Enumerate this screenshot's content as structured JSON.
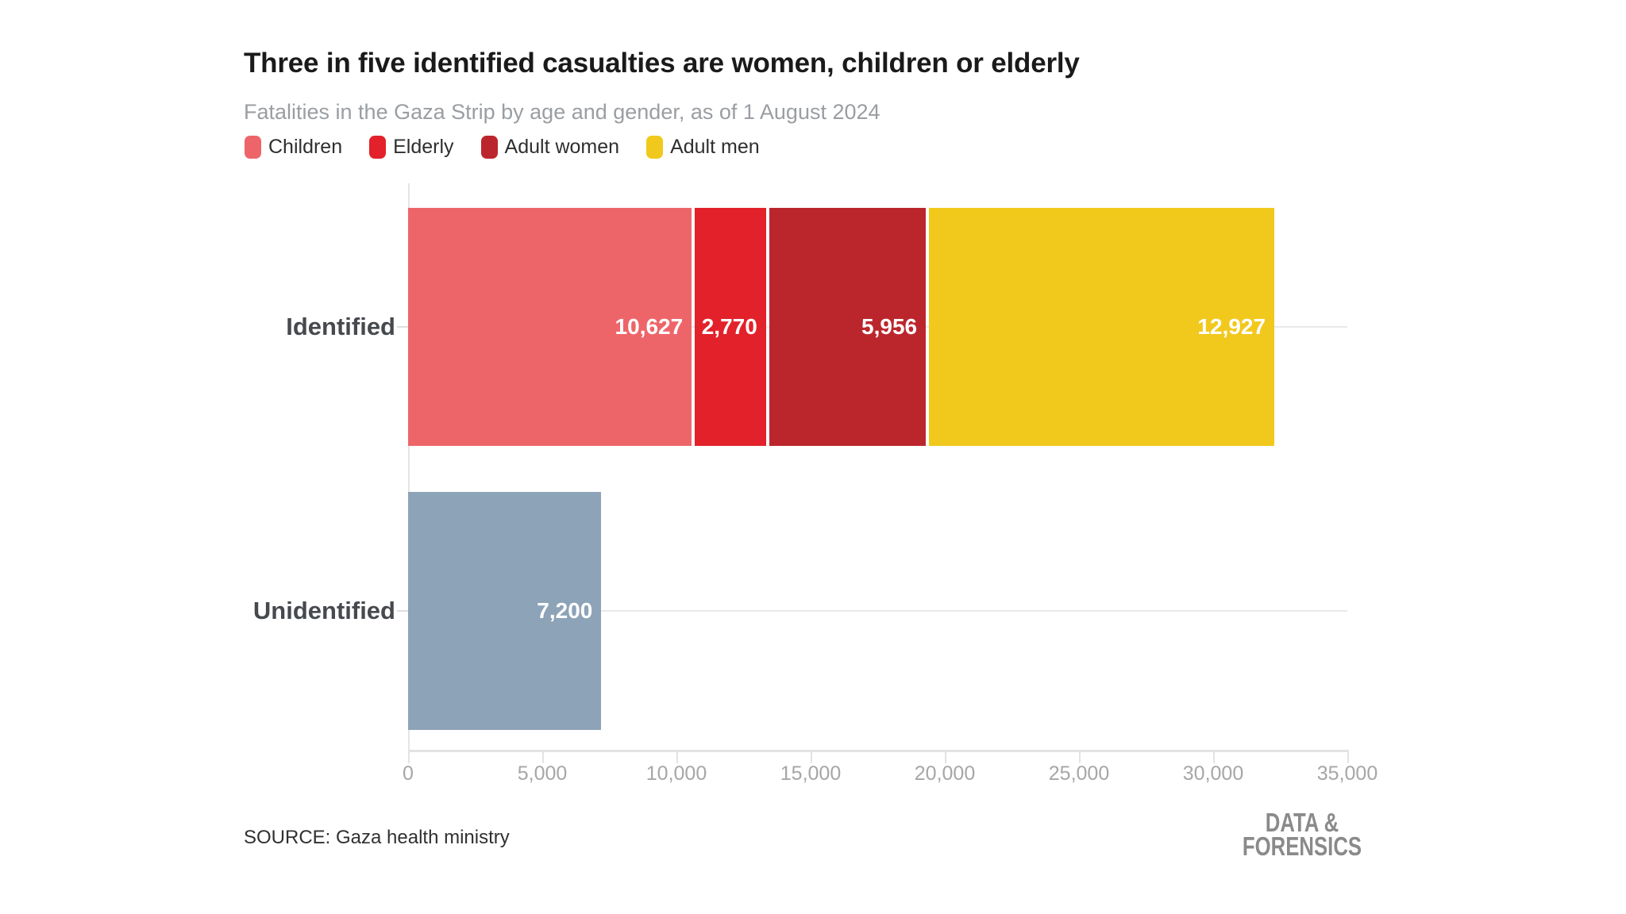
{
  "chart_data": {
    "type": "bar",
    "orientation": "horizontal",
    "stacked": true,
    "title": "Three in five identified casualties are women, children or elderly",
    "subtitle": "Fatalities in the Gaza Strip by age and gender, as of 1 August 2024",
    "categories": [
      "Identified",
      "Unidentified"
    ],
    "legend": [
      {
        "label": "Children",
        "color": "#EE6569"
      },
      {
        "label": "Elderly",
        "color": "#E2212A"
      },
      {
        "label": "Adult women",
        "color": "#BB262C"
      },
      {
        "label": "Adult men",
        "color": "#F1C91D"
      }
    ],
    "legend_position": "top-left",
    "rows": [
      {
        "category": "Identified",
        "segments": [
          {
            "name": "Children",
            "value": 10627,
            "display": "10,627",
            "color": "#EE6569"
          },
          {
            "name": "Elderly",
            "value": 2770,
            "display": "2,770",
            "color": "#E2212A"
          },
          {
            "name": "Adult women",
            "value": 5956,
            "display": "5,956",
            "color": "#BB262C"
          },
          {
            "name": "Adult men",
            "value": 12927,
            "display": "12,927",
            "color": "#F1C91D"
          }
        ]
      },
      {
        "category": "Unidentified",
        "segments": [
          {
            "name": "Unidentified",
            "value": 7200,
            "display": "7,200",
            "color": "#8DA3B7"
          }
        ]
      }
    ],
    "x_axis": {
      "min": 0,
      "max": 35000,
      "ticks": [
        {
          "v": 0,
          "label": "0"
        },
        {
          "v": 5000,
          "label": "5,000"
        },
        {
          "v": 10000,
          "label": "10,000"
        },
        {
          "v": 15000,
          "label": "15,000"
        },
        {
          "v": 20000,
          "label": "20,000"
        },
        {
          "v": 25000,
          "label": "25,000"
        },
        {
          "v": 30000,
          "label": "30,000"
        },
        {
          "v": 35000,
          "label": "35,000"
        }
      ]
    },
    "grid": "horizontal gridline through each row center"
  },
  "source": "SOURCE: Gaza health ministry",
  "logo": {
    "line1": "DATA &",
    "line2": "FORENSICS"
  }
}
